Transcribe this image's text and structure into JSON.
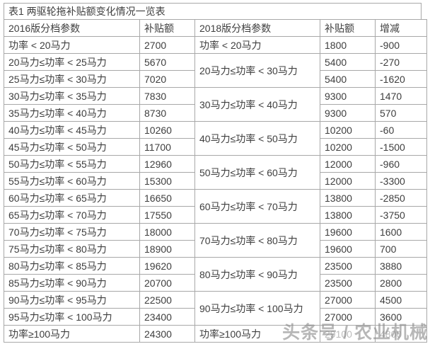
{
  "title": "表1 两驱轮拖补贴额变化情况一览表",
  "watermark": "头条号 / 农业机械",
  "colors": {
    "border": "#a8a8a8",
    "text": "#3e3e3e",
    "watermark": "#8c8c8c",
    "background": "#ffffff"
  },
  "table": {
    "headers": [
      "2016版分档参数",
      "补贴额",
      "2018版分档参数",
      "补贴额",
      "增减"
    ],
    "rows": [
      {
        "p2016": "功率 < 20马力",
        "s2016": "2700",
        "p2018": "功率 < 20马力",
        "span": 1,
        "s2018": "1800",
        "chg": "-900"
      },
      {
        "p2016": "20马力≤功率 < 25马力",
        "s2016": "5670",
        "p2018": "20马力≤功率 < 30马力",
        "span": 2,
        "s2018": "5400",
        "chg": "-270"
      },
      {
        "p2016": "25马力≤功率 < 30马力",
        "s2016": "7020",
        "s2018": "5400",
        "chg": "-1620"
      },
      {
        "p2016": "30马力≤功率 < 35马力",
        "s2016": "7830",
        "p2018": "30马力≤功率 < 40马力",
        "span": 2,
        "s2018": "9300",
        "chg": "1470"
      },
      {
        "p2016": "35马力≤功率 < 40马力",
        "s2016": "8730",
        "s2018": "9300",
        "chg": "570"
      },
      {
        "p2016": "40马力≤功率 < 45马力",
        "s2016": "10260",
        "p2018": "40马力≤功率 < 50马力",
        "span": 2,
        "s2018": "10200",
        "chg": "-60"
      },
      {
        "p2016": "45马力≤功率 < 50马力",
        "s2016": "11700",
        "s2018": "10200",
        "chg": "-1500"
      },
      {
        "p2016": "50马力≤功率 < 55马力",
        "s2016": "12960",
        "p2018": "50马力≤功率 < 60马力",
        "span": 2,
        "s2018": "12000",
        "chg": "-960"
      },
      {
        "p2016": "55马力≤功率 < 60马力",
        "s2016": "15300",
        "s2018": "12000",
        "chg": "-3300"
      },
      {
        "p2016": "60马力≤功率 < 65马力",
        "s2016": "16650",
        "p2018": "60马力≤功率 < 70马力",
        "span": 2,
        "s2018": "13800",
        "chg": "-2850"
      },
      {
        "p2016": "65马力≤功率 < 70马力",
        "s2016": "17550",
        "s2018": "13800",
        "chg": "-3750"
      },
      {
        "p2016": "70马力≤功率 < 75马力",
        "s2016": "18000",
        "p2018": "70马力≤功率 < 80马力",
        "span": 2,
        "s2018": "19600",
        "chg": "1600"
      },
      {
        "p2016": "75马力≤功率 < 80马力",
        "s2016": "18900",
        "s2018": "19600",
        "chg": "700"
      },
      {
        "p2016": "80马力≤功率 < 85马力",
        "s2016": "19620",
        "p2018": "80马力≤功率 < 90马力",
        "span": 2,
        "s2018": "23500",
        "chg": "3880"
      },
      {
        "p2016": "85马力≤功率 < 90马力",
        "s2016": "20700",
        "s2018": "23500",
        "chg": "2800"
      },
      {
        "p2016": "90马力≤功率 < 95马力",
        "s2016": "22500",
        "p2018": "90马力≤功率 < 100马力",
        "span": 2,
        "s2018": "27000",
        "chg": "4500"
      },
      {
        "p2016": "95马力≤功率 < 100马力",
        "s2016": "23400",
        "s2018": "27000",
        "chg": "3600"
      },
      {
        "p2016": "功率≥100马力",
        "s2016": "24300",
        "p2018": "功率≥100马力",
        "span": 1,
        "s2018": "29100",
        "chg": "4800",
        "obscured": true
      }
    ]
  }
}
